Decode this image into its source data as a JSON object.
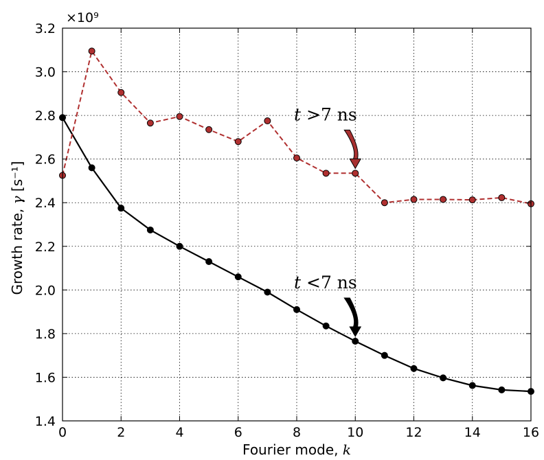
{
  "chart_data": {
    "type": "line",
    "title": "",
    "xlabel": "Fourier mode, ",
    "xlabel_symbol": "k",
    "ylabel": "Growth rate, ",
    "ylabel_symbol": "γ",
    "ylabel_unit": " [s⁻¹]",
    "y_multiplier": "×10⁹",
    "xlim": [
      0,
      16
    ],
    "ylim": [
      1.4,
      3.2
    ],
    "xticks": [
      0,
      2,
      4,
      6,
      8,
      10,
      12,
      14,
      16
    ],
    "yticks": [
      1.4,
      1.6,
      1.8,
      2.0,
      2.2,
      2.4,
      2.6,
      2.8,
      3.0,
      3.2
    ],
    "xtick_labels": [
      "0",
      "2",
      "4",
      "6",
      "8",
      "10",
      "12",
      "14",
      "16"
    ],
    "ytick_labels": [
      "1.4",
      "1.6",
      "1.8",
      "2.0",
      "2.2",
      "2.4",
      "2.6",
      "2.8",
      "3.0",
      "3.2"
    ],
    "grid": true,
    "series": [
      {
        "x": [
          0,
          1,
          2,
          3,
          4,
          5,
          6,
          7,
          8,
          9,
          10,
          11,
          12,
          13,
          14,
          15,
          16
        ],
        "values": [
          2.79,
          2.56,
          2.375,
          2.275,
          2.2,
          2.13,
          2.06,
          1.99,
          1.91,
          1.835,
          1.765,
          1.7,
          1.64,
          1.597,
          1.562,
          1.542,
          1.535
        ],
        "color": "#000000",
        "linestyle": "solid",
        "marker_fill": "#000000"
      },
      {
        "x": [
          0,
          1,
          2,
          3,
          4,
          5,
          6,
          7,
          8,
          9,
          10,
          11,
          12,
          13,
          14,
          15,
          16
        ],
        "values": [
          2.525,
          3.095,
          2.905,
          2.765,
          2.795,
          2.735,
          2.68,
          2.775,
          2.605,
          2.535,
          2.535,
          2.4,
          2.415,
          2.415,
          2.413,
          2.423,
          2.395
        ],
        "color": "#b03030",
        "linestyle": "dashed",
        "marker_fill": "#b03030"
      }
    ],
    "annotations": [
      {
        "pre": "t",
        "rel": " >7 ",
        "unit": "ns",
        "x": 10,
        "y": 2.535,
        "color": "#a83030"
      },
      {
        "pre": "t",
        "rel": " <7 ",
        "unit": "ns",
        "x": 10,
        "y": 1.765,
        "color": "#000000"
      }
    ]
  }
}
